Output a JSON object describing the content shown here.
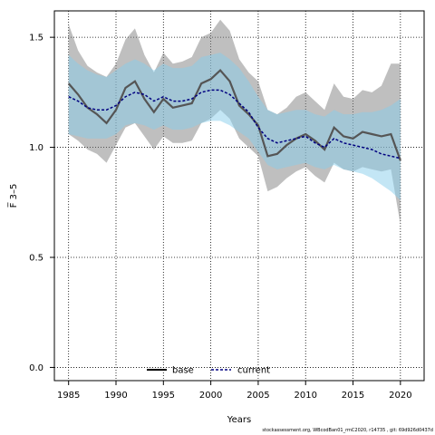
{
  "chart_data": {
    "type": "line",
    "xlabel": "Years",
    "ylabel": "F̅ 3–5",
    "xlim": [
      1983.5,
      2022.5
    ],
    "ylim": [
      -0.06,
      1.62
    ],
    "x_ticks": [
      1985,
      1990,
      1995,
      2000,
      2005,
      2010,
      2015,
      2020
    ],
    "y_ticks": [
      0.0,
      0.5,
      1.0,
      1.5
    ],
    "y_tick_labels": [
      "0.0",
      "0.5",
      "1.0",
      "1.5"
    ],
    "grid": true,
    "legend_placement": "bottom-center",
    "x": [
      1985,
      1986,
      1987,
      1988,
      1989,
      1990,
      1991,
      1992,
      1993,
      1994,
      1995,
      1996,
      1997,
      1998,
      1999,
      2000,
      2001,
      2002,
      2003,
      2004,
      2005,
      2006,
      2007,
      2008,
      2009,
      2010,
      2011,
      2012,
      2013,
      2014,
      2015,
      2016,
      2017,
      2018,
      2019,
      2020
    ],
    "series": [
      {
        "name": "base",
        "color": "#000000",
        "line_color": "#555555",
        "style": "solid",
        "values": [
          1.29,
          1.24,
          1.18,
          1.15,
          1.11,
          1.17,
          1.27,
          1.3,
          1.22,
          1.16,
          1.22,
          1.18,
          1.19,
          1.2,
          1.29,
          1.31,
          1.35,
          1.3,
          1.19,
          1.15,
          1.1,
          0.96,
          0.97,
          1.01,
          1.04,
          1.06,
          1.03,
          0.99,
          1.09,
          1.05,
          1.04,
          1.07,
          1.06,
          1.05,
          1.06,
          0.94
        ],
        "lower": [
          1.06,
          1.03,
          0.99,
          0.97,
          0.93,
          1.01,
          1.09,
          1.11,
          1.05,
          0.99,
          1.05,
          1.02,
          1.02,
          1.03,
          1.11,
          1.13,
          1.17,
          1.13,
          1.04,
          1.0,
          0.96,
          0.8,
          0.82,
          0.86,
          0.89,
          0.91,
          0.87,
          0.84,
          0.93,
          0.9,
          0.89,
          0.91,
          0.9,
          0.89,
          0.9,
          0.65
        ],
        "upper": [
          1.56,
          1.44,
          1.37,
          1.34,
          1.32,
          1.38,
          1.49,
          1.54,
          1.42,
          1.34,
          1.43,
          1.38,
          1.39,
          1.41,
          1.5,
          1.52,
          1.58,
          1.53,
          1.4,
          1.34,
          1.3,
          1.17,
          1.15,
          1.18,
          1.23,
          1.25,
          1.21,
          1.17,
          1.29,
          1.23,
          1.22,
          1.26,
          1.25,
          1.28,
          1.38,
          1.38
        ],
        "band_color": "#7f7f7f"
      },
      {
        "name": "current",
        "color": "#000080",
        "style": "dashed",
        "values": [
          1.23,
          1.21,
          1.18,
          1.17,
          1.17,
          1.19,
          1.23,
          1.25,
          1.24,
          1.21,
          1.23,
          1.21,
          1.21,
          1.22,
          1.25,
          1.26,
          1.26,
          1.24,
          1.2,
          1.16,
          1.09,
          1.04,
          1.02,
          1.03,
          1.04,
          1.05,
          1.02,
          1.0,
          1.04,
          1.02,
          1.01,
          1.0,
          0.99,
          0.97,
          0.96,
          0.95
        ],
        "lower": [
          1.06,
          1.05,
          1.04,
          1.04,
          1.04,
          1.06,
          1.1,
          1.11,
          1.1,
          1.08,
          1.1,
          1.08,
          1.08,
          1.09,
          1.11,
          1.12,
          1.12,
          1.1,
          1.07,
          1.04,
          0.98,
          0.92,
          0.9,
          0.91,
          0.92,
          0.93,
          0.91,
          0.9,
          0.92,
          0.9,
          0.89,
          0.88,
          0.86,
          0.83,
          0.8,
          0.76
        ],
        "upper": [
          1.42,
          1.38,
          1.35,
          1.33,
          1.32,
          1.35,
          1.38,
          1.4,
          1.38,
          1.35,
          1.38,
          1.36,
          1.36,
          1.37,
          1.41,
          1.42,
          1.43,
          1.4,
          1.36,
          1.3,
          1.23,
          1.17,
          1.15,
          1.16,
          1.17,
          1.17,
          1.15,
          1.14,
          1.17,
          1.15,
          1.15,
          1.16,
          1.16,
          1.17,
          1.19,
          1.22
        ],
        "band_color": "#87ceeb"
      }
    ]
  },
  "footer_text": "stockassessment.org, WBcodBan01_rmC2020, r14735 , git: 69d926d0437d"
}
